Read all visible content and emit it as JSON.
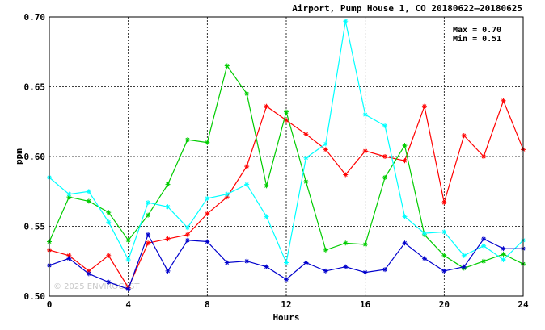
{
  "chart_data": {
    "type": "line",
    "title": "Airport, Pump House 1, CO 20180622–20180625",
    "xlabel": "Hours",
    "ylabel": "ppm",
    "xlim": [
      0,
      24
    ],
    "ylim": [
      0.5,
      0.7
    ],
    "xticks": [
      "0",
      "4",
      "8",
      "12",
      "16",
      "20",
      "24"
    ],
    "yticks": [
      "0.50",
      "0.55",
      "0.60",
      "0.65",
      "0.70"
    ],
    "grid": true,
    "annotations": [
      "Max = 0.70",
      "Min = 0.51"
    ],
    "watermark": "© 2025 ENVIROCAST",
    "series": [
      {
        "color": "#ff0000",
        "x": [
          0,
          1,
          2,
          3,
          4,
          5,
          6,
          7,
          8,
          9,
          10,
          11,
          12,
          13,
          14,
          15,
          16,
          17,
          18,
          19,
          20,
          21,
          22,
          23,
          24
        ],
        "values": [
          0.533,
          0.529,
          0.518,
          0.529,
          0.506,
          0.538,
          0.541,
          0.544,
          0.559,
          0.571,
          0.593,
          0.636,
          0.626,
          0.616,
          0.605,
          0.587,
          0.604,
          0.6,
          0.597,
          0.636,
          0.567,
          0.615,
          0.6,
          0.64,
          0.605
        ]
      },
      {
        "color": "#00cc00",
        "x": [
          0,
          1,
          2,
          3,
          4,
          5,
          6,
          7,
          8,
          9,
          10,
          11,
          12,
          13,
          14,
          15,
          16,
          17,
          18,
          19,
          20,
          21,
          22,
          23,
          24
        ],
        "values": [
          0.539,
          0.571,
          0.568,
          0.56,
          0.54,
          0.558,
          0.58,
          0.612,
          0.61,
          0.665,
          0.645,
          0.579,
          0.632,
          0.582,
          0.533,
          0.538,
          0.537,
          0.585,
          0.608,
          0.544,
          0.529,
          0.52,
          0.525,
          0.53,
          0.523
        ]
      },
      {
        "color": "#00ffff",
        "x": [
          0,
          1,
          2,
          3,
          4,
          5,
          6,
          7,
          8,
          9,
          10,
          11,
          12,
          13,
          14,
          15,
          16,
          17,
          18,
          19,
          20,
          21,
          22,
          23,
          24
        ],
        "values": [
          0.585,
          0.573,
          0.575,
          0.553,
          0.526,
          0.567,
          0.564,
          0.549,
          0.57,
          0.573,
          0.58,
          0.557,
          0.524,
          0.599,
          0.609,
          0.697,
          0.63,
          0.622,
          0.557,
          0.545,
          0.546,
          0.529,
          0.536,
          0.526,
          0.54
        ]
      },
      {
        "color": "#0000cc",
        "x": [
          0,
          1,
          2,
          3,
          4,
          5,
          6,
          7,
          8,
          9,
          10,
          11,
          12,
          13,
          14,
          15,
          16,
          17,
          18,
          19,
          20,
          21,
          22,
          23,
          24
        ],
        "values": [
          0.522,
          0.527,
          0.516,
          0.51,
          0.505,
          0.544,
          0.518,
          0.54,
          0.539,
          0.524,
          0.525,
          0.521,
          0.512,
          0.524,
          0.518,
          0.521,
          0.517,
          0.519,
          0.538,
          0.527,
          0.518,
          0.521,
          0.541,
          0.534,
          0.534
        ]
      }
    ]
  }
}
